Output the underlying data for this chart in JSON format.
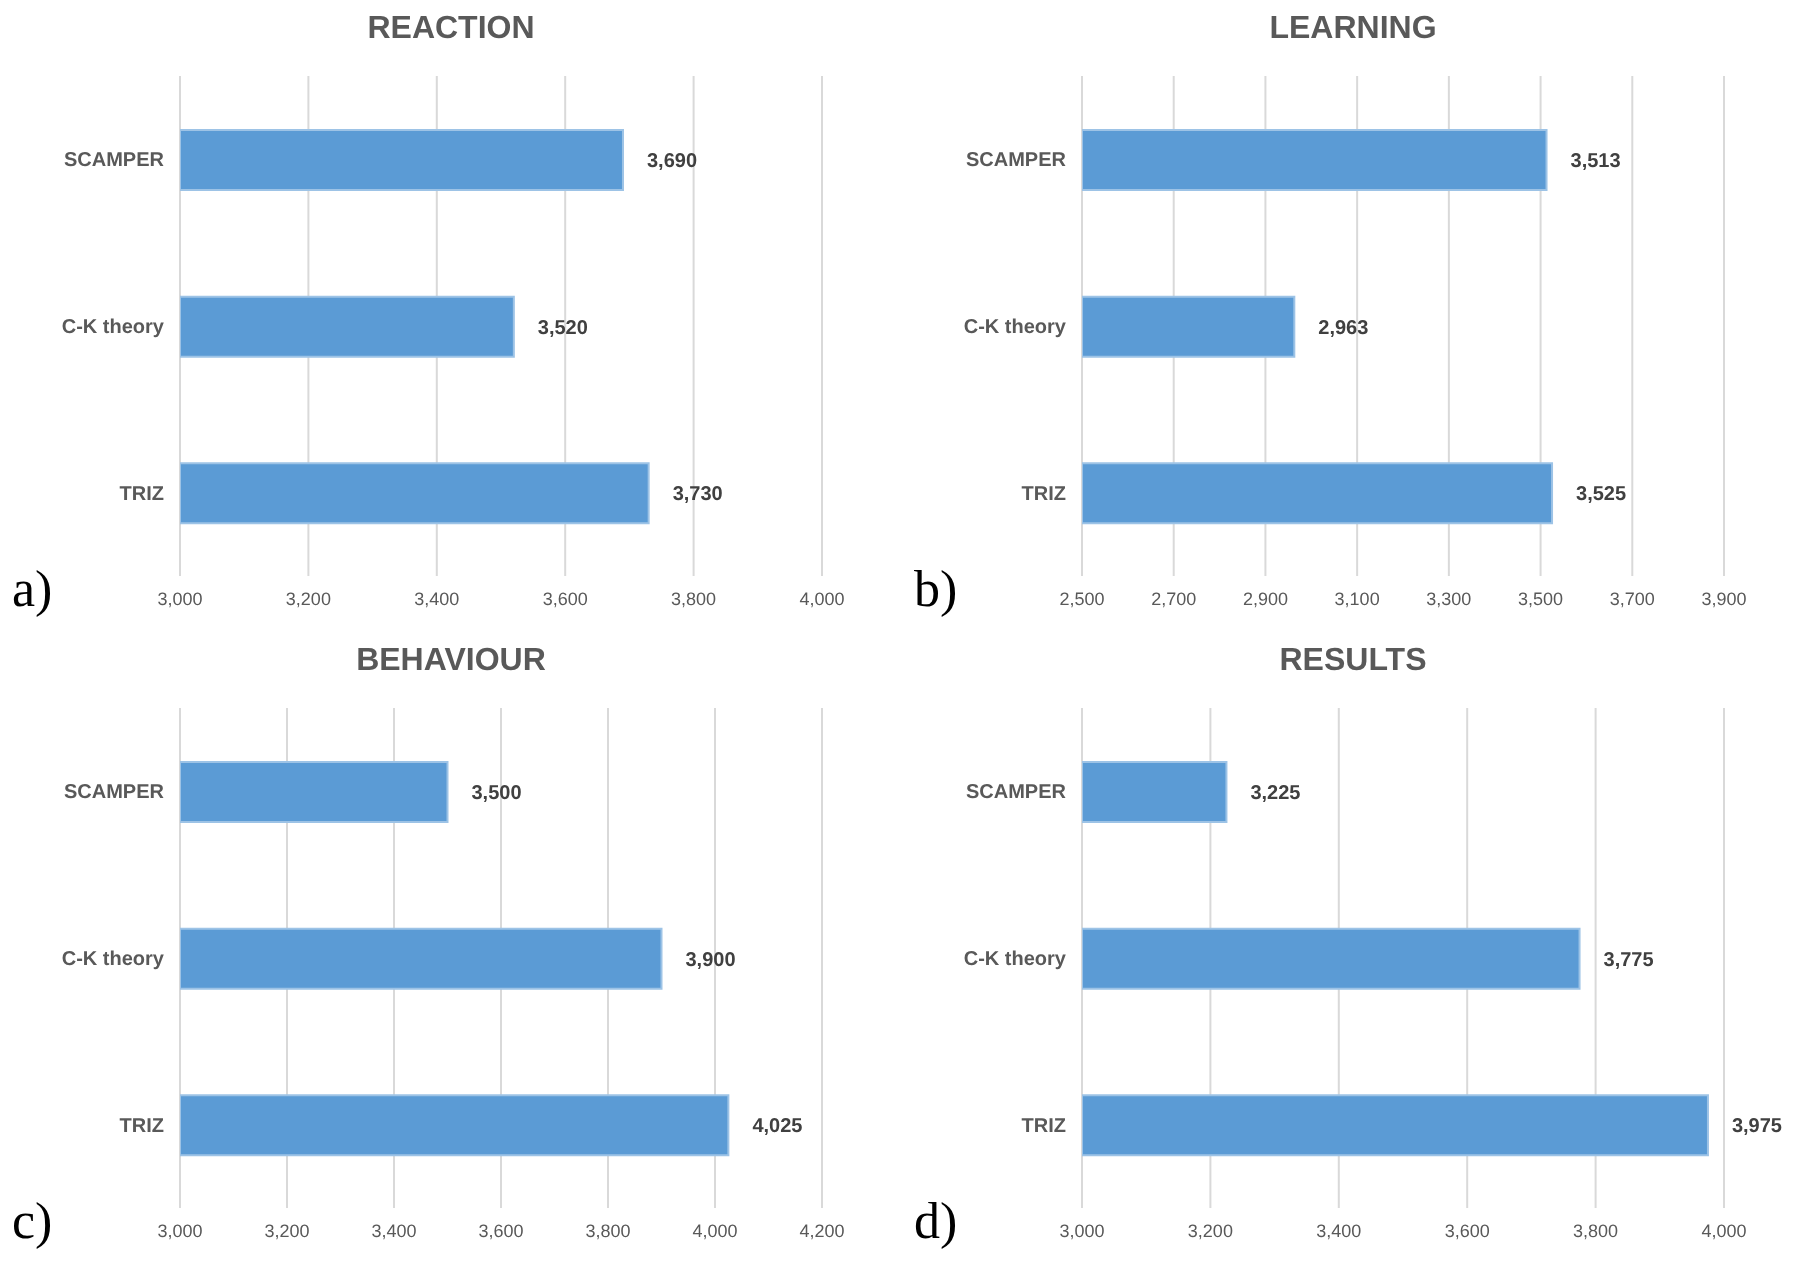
{
  "chart_data": [
    {
      "type": "bar",
      "orientation": "horizontal",
      "title": "REACTION",
      "categories": [
        "SCAMPER",
        "C-K theory",
        "TRIZ"
      ],
      "values": [
        3690,
        3520,
        3730
      ],
      "value_labels": [
        "3,690",
        "3,520",
        "3,730"
      ],
      "color": "#5b9bd5",
      "xlim": [
        3000,
        4000
      ],
      "xticks": [
        {
          "value": 3000,
          "label": "3,000"
        },
        {
          "value": 3200,
          "label": "3,200"
        },
        {
          "value": 3400,
          "label": "3,400"
        },
        {
          "value": 3600,
          "label": "3,600"
        },
        {
          "value": 3800,
          "label": "3,800"
        },
        {
          "value": 4000,
          "label": "4,000"
        }
      ],
      "grid": "x",
      "annotations": [
        "a)"
      ]
    },
    {
      "type": "bar",
      "orientation": "horizontal",
      "title": "LEARNING",
      "categories": [
        "SCAMPER",
        "C-K theory",
        "TRIZ"
      ],
      "values": [
        3513,
        2963,
        3525
      ],
      "value_labels": [
        "3,513",
        "2,963",
        "3,525"
      ],
      "color": "#5b9bd5",
      "xlim": [
        2500,
        3900
      ],
      "xticks": [
        {
          "value": 2500,
          "label": "2,500"
        },
        {
          "value": 2700,
          "label": "2,700"
        },
        {
          "value": 2900,
          "label": "2,900"
        },
        {
          "value": 3100,
          "label": "3,100"
        },
        {
          "value": 3300,
          "label": "3,300"
        },
        {
          "value": 3500,
          "label": "3,500"
        },
        {
          "value": 3700,
          "label": "3,700"
        },
        {
          "value": 3900,
          "label": "3,900"
        }
      ],
      "grid": "x",
      "annotations": [
        "b)"
      ]
    },
    {
      "type": "bar",
      "orientation": "horizontal",
      "title": "BEHAVIOUR",
      "categories": [
        "SCAMPER",
        "C-K theory",
        "TRIZ"
      ],
      "values": [
        3500,
        3900,
        4025
      ],
      "value_labels": [
        "3,500",
        "3,900",
        "4,025"
      ],
      "color": "#5b9bd5",
      "xlim": [
        3000,
        4200
      ],
      "xticks": [
        {
          "value": 3000,
          "label": "3,000"
        },
        {
          "value": 3200,
          "label": "3,200"
        },
        {
          "value": 3400,
          "label": "3,400"
        },
        {
          "value": 3600,
          "label": "3,600"
        },
        {
          "value": 3800,
          "label": "3,800"
        },
        {
          "value": 4000,
          "label": "4,000"
        },
        {
          "value": 4200,
          "label": "4,200"
        }
      ],
      "grid": "x",
      "annotations": [
        "c)"
      ]
    },
    {
      "type": "bar",
      "orientation": "horizontal",
      "title": "RESULTS",
      "categories": [
        "SCAMPER",
        "C-K theory",
        "TRIZ"
      ],
      "values": [
        3225,
        3775,
        3975
      ],
      "value_labels": [
        "3,225",
        "3,775",
        "3,975"
      ],
      "color": "#5b9bd5",
      "xlim": [
        3000,
        4000
      ],
      "xticks": [
        {
          "value": 3000,
          "label": "3,000"
        },
        {
          "value": 3200,
          "label": "3,200"
        },
        {
          "value": 3400,
          "label": "3,400"
        },
        {
          "value": 3600,
          "label": "3,600"
        },
        {
          "value": 3800,
          "label": "3,800"
        },
        {
          "value": 4000,
          "label": "4,000"
        }
      ],
      "grid": "x",
      "annotations": [
        "d)"
      ]
    }
  ]
}
